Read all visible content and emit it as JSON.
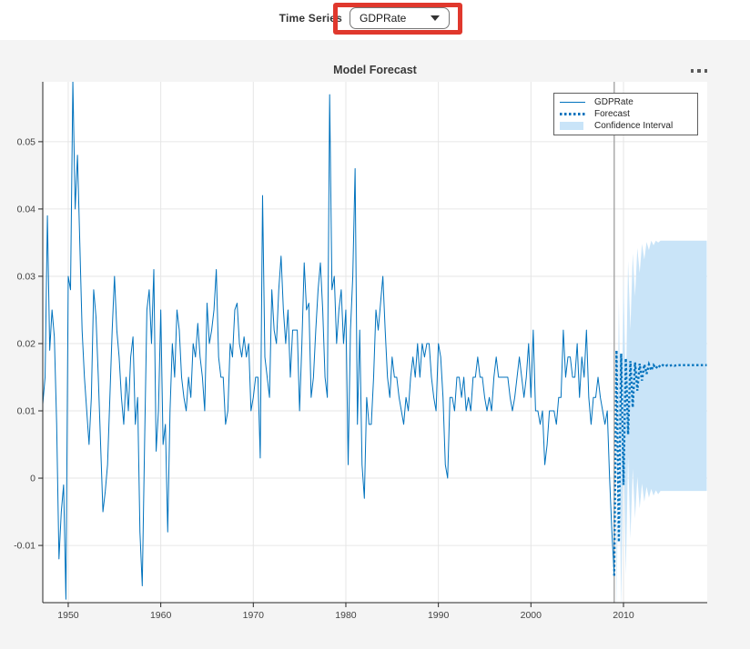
{
  "toolbar": {
    "time_series_label": "Time Series",
    "time_series_value": "GDPRate"
  },
  "icons": {
    "dropdown_caret": "caret-down-icon",
    "axes_menu": "ellipsis-icon"
  },
  "figure": {
    "title": "Model Forecast"
  },
  "legend": {
    "entries": [
      {
        "label": "GDPRate",
        "sample": "solid-line"
      },
      {
        "label": "Forecast",
        "sample": "dotted-line"
      },
      {
        "label": "Confidence Interval",
        "sample": "patch"
      }
    ]
  },
  "colors": {
    "series_blue": "#0072BD",
    "confidence_band": "#C9E4F8",
    "highlight_red": "#E0382D",
    "grid": "#E6E6E6",
    "axis": "#262626",
    "tick_label": "#424242",
    "separator": "#9E9E9E",
    "plot_bg": "#FFFFFF",
    "page_bg": "#F4F4F4",
    "topbar_bg": "#FFFFFF"
  },
  "chart_data": {
    "type": "line",
    "title": "Model Forecast",
    "xlabel": "",
    "ylabel": "",
    "grid": true,
    "legend_position": "northeast",
    "xlim": [
      1947.25,
      2019.05
    ],
    "ylim": [
      -0.0185,
      0.0589
    ],
    "xticks": [
      1950,
      1960,
      1970,
      1980,
      1990,
      2000,
      2010
    ],
    "xticklabels": [
      "1950",
      "1960",
      "1970",
      "1980",
      "1990",
      "2000",
      "2010"
    ],
    "yticks": [
      -0.01,
      0,
      0.01,
      0.02,
      0.03,
      0.04,
      0.05
    ],
    "yticklabels": [
      "-0.01",
      "0",
      "0.01",
      "0.02",
      "0.03",
      "0.04",
      "0.05"
    ],
    "forecast_origin_x": 2009.0,
    "series": [
      {
        "name": "GDPRate",
        "style": "solid",
        "x_start": 1947.25,
        "x_step": 0.25,
        "values": [
          0.011,
          0.015,
          0.039,
          0.019,
          0.025,
          0.021,
          0.008,
          -0.012,
          -0.005,
          -0.001,
          -0.018,
          0.03,
          0.028,
          0.059,
          0.04,
          0.048,
          0.035,
          0.022,
          0.015,
          0.01,
          0.005,
          0.012,
          0.028,
          0.024,
          0.015,
          0.005,
          -0.005,
          -0.002,
          0.002,
          0.012,
          0.022,
          0.03,
          0.022,
          0.018,
          0.012,
          0.008,
          0.015,
          0.01,
          0.018,
          0.021,
          0.008,
          0.012,
          -0.008,
          -0.016,
          0.005,
          0.025,
          0.028,
          0.02,
          0.031,
          0.004,
          0.01,
          0.025,
          0.005,
          0.008,
          -0.008,
          0.01,
          0.02,
          0.015,
          0.025,
          0.022,
          0.015,
          0.012,
          0.01,
          0.015,
          0.012,
          0.02,
          0.018,
          0.023,
          0.018,
          0.015,
          0.01,
          0.026,
          0.02,
          0.022,
          0.025,
          0.031,
          0.018,
          0.015,
          0.015,
          0.008,
          0.01,
          0.02,
          0.018,
          0.025,
          0.026,
          0.02,
          0.018,
          0.021,
          0.018,
          0.02,
          0.01,
          0.012,
          0.015,
          0.015,
          0.003,
          0.042,
          0.018,
          0.015,
          0.012,
          0.028,
          0.022,
          0.02,
          0.028,
          0.033,
          0.025,
          0.02,
          0.025,
          0.015,
          0.022,
          0.022,
          0.022,
          0.01,
          0.02,
          0.032,
          0.025,
          0.026,
          0.012,
          0.015,
          0.022,
          0.028,
          0.032,
          0.025,
          0.015,
          0.012,
          0.057,
          0.028,
          0.03,
          0.02,
          0.025,
          0.028,
          0.02,
          0.025,
          0.002,
          0.022,
          0.03,
          0.046,
          0.008,
          0.022,
          0.002,
          -0.003,
          0.012,
          0.008,
          0.008,
          0.015,
          0.025,
          0.022,
          0.026,
          0.03,
          0.022,
          0.015,
          0.012,
          0.018,
          0.015,
          0.015,
          0.012,
          0.01,
          0.008,
          0.012,
          0.01,
          0.015,
          0.018,
          0.015,
          0.02,
          0.015,
          0.02,
          0.018,
          0.02,
          0.02,
          0.015,
          0.012,
          0.01,
          0.02,
          0.018,
          0.012,
          0.002,
          0.0,
          0.012,
          0.012,
          0.01,
          0.015,
          0.015,
          0.012,
          0.015,
          0.01,
          0.012,
          0.01,
          0.015,
          0.015,
          0.018,
          0.015,
          0.015,
          0.012,
          0.01,
          0.012,
          0.01,
          0.015,
          0.018,
          0.015,
          0.015,
          0.015,
          0.015,
          0.015,
          0.012,
          0.01,
          0.012,
          0.015,
          0.018,
          0.015,
          0.012,
          0.015,
          0.02,
          0.012,
          0.022,
          0.01,
          0.01,
          0.008,
          0.01,
          0.002,
          0.005,
          0.01,
          0.01,
          0.01,
          0.008,
          0.012,
          0.012,
          0.022,
          0.015,
          0.018,
          0.018,
          0.015,
          0.015,
          0.02,
          0.012,
          0.018,
          0.015,
          0.022,
          0.012,
          0.008,
          0.012,
          0.012,
          0.015,
          0.012,
          0.01,
          0.008,
          0.01,
          0.0,
          -0.008,
          -0.0145
        ]
      },
      {
        "name": "Forecast",
        "style": "dotted",
        "x_start": 2009.0,
        "x_step": 0.25,
        "values": [
          -0.0145,
          0.019,
          -0.0095,
          0.0185,
          -0.001,
          0.0178,
          0.0065,
          0.0174,
          0.0105,
          0.0172,
          0.013,
          0.017,
          0.0145,
          0.0169,
          0.0155,
          0.0169,
          0.016,
          0.0168,
          0.0163,
          0.0168,
          0.0165,
          0.0168,
          0.0166,
          0.0168,
          0.0167,
          0.0168,
          0.0167,
          0.0168,
          0.0168,
          0.0168,
          0.0168,
          0.0168,
          0.0168,
          0.0168,
          0.0168,
          0.0168,
          0.0168,
          0.0168,
          0.0168,
          0.0168,
          0.0168
        ]
      },
      {
        "name": "Confidence Interval",
        "style": "band",
        "x_start": 2009.25,
        "x_step": 0.25,
        "upper": [
          -0.0085,
          0.027,
          0.0005,
          0.0305,
          0.0125,
          0.0323,
          0.022,
          0.0334,
          0.027,
          0.0342,
          0.0305,
          0.0348,
          0.0325,
          0.0351,
          0.0339,
          0.0353,
          0.0346,
          0.0353,
          0.035,
          0.0353,
          0.0353,
          0.0353,
          0.0353,
          0.0353,
          0.0353,
          0.0353,
          0.0353,
          0.0353,
          0.0353,
          0.0353,
          0.0353,
          0.0353,
          0.0353,
          0.0353,
          0.0353,
          0.0353,
          0.0353,
          0.0353,
          0.0353,
          0.0353
        ],
        "lower": [
          -0.0205,
          0.011,
          -0.0195,
          0.0065,
          -0.0145,
          0.0033,
          -0.009,
          0.0014,
          -0.006,
          0.0002,
          -0.0045,
          -0.0008,
          -0.0035,
          -0.0013,
          -0.0029,
          -0.0016,
          -0.0026,
          -0.0018,
          -0.0024,
          -0.0019,
          -0.0019,
          -0.0019,
          -0.0019,
          -0.0019,
          -0.0019,
          -0.0019,
          -0.0019,
          -0.0019,
          -0.0019,
          -0.0019,
          -0.0019,
          -0.0019,
          -0.0019,
          -0.0019,
          -0.0019,
          -0.0019,
          -0.0019,
          -0.0019,
          -0.0019,
          -0.0019
        ]
      }
    ]
  }
}
